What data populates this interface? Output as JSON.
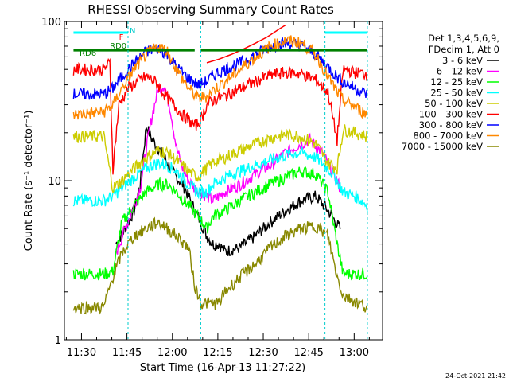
{
  "chart_data": {
    "type": "line",
    "title": "RHESSI Observing Summary Count Rates",
    "xlabel": "Start Time (16-Apr-13 11:27:22)",
    "ylabel": "Count Rate (s⁻¹ detector⁻¹)",
    "y_scale": "log",
    "ylim": [
      1,
      100
    ],
    "xlim_minutes": [
      -3,
      102
    ],
    "x_tick_labels": [
      "11:30",
      "11:45",
      "12:00",
      "12:15",
      "12:30",
      "12:45",
      "13:00"
    ],
    "y_tick_labels": [
      "1",
      "10",
      "100"
    ],
    "date_stamp": "24-Oct-2021 21:42",
    "legend_header": [
      "Det 1,3,4,5,6,9,",
      "FDecim 1, Att 0"
    ],
    "annotations": {
      "night_bar": "N",
      "flare_flag": "F",
      "rd0": "RD0",
      "rd6": "RD6"
    },
    "series": [
      {
        "name": "3 - 6 keV",
        "color": "#000000",
        "points": [
          [
            14,
            4.0
          ],
          [
            17,
            5.0
          ],
          [
            20,
            6.5
          ],
          [
            22,
            9.5
          ],
          [
            24,
            22
          ],
          [
            26,
            18
          ],
          [
            28,
            16
          ],
          [
            30,
            14
          ],
          [
            32,
            12
          ],
          [
            34,
            10.5
          ],
          [
            36,
            9.5
          ],
          [
            38,
            8
          ],
          [
            40,
            6.5
          ],
          [
            42,
            5.5
          ],
          [
            44,
            4.5
          ],
          [
            46,
            4.0
          ],
          [
            48,
            4.0
          ],
          [
            50,
            3.6
          ],
          [
            55,
            3.8
          ],
          [
            60,
            4.5
          ],
          [
            65,
            5.5
          ],
          [
            70,
            6.5
          ],
          [
            75,
            7.5
          ],
          [
            80,
            8.0
          ],
          [
            84,
            6.5
          ],
          [
            88,
            5.0
          ]
        ]
      },
      {
        "name": "6 - 12 keV",
        "color": "#ff00ff",
        "points": [
          [
            14,
            3.5
          ],
          [
            17,
            5.0
          ],
          [
            20,
            7.0
          ],
          [
            22,
            9.0
          ],
          [
            24,
            16
          ],
          [
            26,
            26
          ],
          [
            28,
            38
          ],
          [
            30,
            40
          ],
          [
            32,
            28
          ],
          [
            34,
            16
          ],
          [
            36,
            12
          ],
          [
            38,
            10
          ],
          [
            40,
            9
          ],
          [
            42,
            8.5
          ],
          [
            44,
            8
          ],
          [
            46,
            7.5
          ],
          [
            48,
            8
          ],
          [
            50,
            8.5
          ],
          [
            55,
            9.5
          ],
          [
            60,
            11
          ],
          [
            65,
            12.5
          ],
          [
            70,
            15
          ],
          [
            75,
            17
          ],
          [
            78,
            18
          ],
          [
            82,
            15
          ],
          [
            86,
            11
          ],
          [
            88,
            9
          ]
        ]
      },
      {
        "name": "12 - 25 keV",
        "color": "#00ff00",
        "points": [
          [
            0,
            2.6
          ],
          [
            10,
            2.6
          ],
          [
            13,
            2.7
          ],
          [
            16,
            5.5
          ],
          [
            20,
            7
          ],
          [
            24,
            8.5
          ],
          [
            28,
            9.5
          ],
          [
            31,
            9.5
          ],
          [
            34,
            8.5
          ],
          [
            38,
            7
          ],
          [
            41,
            6
          ],
          [
            44,
            5
          ],
          [
            46,
            6
          ],
          [
            50,
            6.5
          ],
          [
            55,
            7.5
          ],
          [
            60,
            8.5
          ],
          [
            65,
            9.5
          ],
          [
            70,
            10.5
          ],
          [
            75,
            11.5
          ],
          [
            80,
            11
          ],
          [
            84,
            8.5
          ],
          [
            87,
            4
          ],
          [
            89,
            2.6
          ],
          [
            97,
            2.6
          ]
        ]
      },
      {
        "name": "25 - 50 keV",
        "color": "#00ffff",
        "points": [
          [
            0,
            7.5
          ],
          [
            10,
            7.5
          ],
          [
            13,
            8
          ],
          [
            16,
            9
          ],
          [
            20,
            10.5
          ],
          [
            24,
            12
          ],
          [
            28,
            13
          ],
          [
            31,
            12.5
          ],
          [
            34,
            11.5
          ],
          [
            38,
            9.5
          ],
          [
            41,
            8.5
          ],
          [
            44,
            8.5
          ],
          [
            46,
            9.5
          ],
          [
            50,
            10.5
          ],
          [
            55,
            11.5
          ],
          [
            60,
            12.5
          ],
          [
            65,
            13.5
          ],
          [
            70,
            14.5
          ],
          [
            75,
            15
          ],
          [
            80,
            14
          ],
          [
            84,
            12
          ],
          [
            87,
            10
          ],
          [
            89,
            8.5
          ],
          [
            93,
            8
          ],
          [
            97,
            7
          ]
        ]
      },
      {
        "name": "50 - 100 keV",
        "color": "#cccc00",
        "points": [
          [
            0,
            19
          ],
          [
            10,
            19
          ],
          [
            13,
            9
          ],
          [
            16,
            10
          ],
          [
            20,
            12
          ],
          [
            24,
            14
          ],
          [
            28,
            15.5
          ],
          [
            31,
            15
          ],
          [
            34,
            13.5
          ],
          [
            38,
            11.5
          ],
          [
            41,
            10.5
          ],
          [
            44,
            12
          ],
          [
            46,
            13
          ],
          [
            50,
            14
          ],
          [
            55,
            15.5
          ],
          [
            60,
            17
          ],
          [
            65,
            18.5
          ],
          [
            70,
            19.5
          ],
          [
            75,
            19
          ],
          [
            80,
            17
          ],
          [
            84,
            13
          ],
          [
            87,
            12
          ],
          [
            89,
            21
          ],
          [
            93,
            20
          ],
          [
            97,
            19
          ]
        ]
      },
      {
        "name": "100 - 300 keV",
        "color": "#ff0000",
        "points": [
          [
            0,
            50
          ],
          [
            10,
            50
          ],
          [
            12,
            55
          ],
          [
            13,
            12
          ],
          [
            15,
            30
          ],
          [
            18,
            38
          ],
          [
            21,
            42
          ],
          [
            24,
            45
          ],
          [
            27,
            42
          ],
          [
            30,
            35
          ],
          [
            33,
            30
          ],
          [
            36,
            26
          ],
          [
            38,
            24
          ],
          [
            40,
            22
          ],
          [
            42,
            24
          ],
          [
            44,
            30
          ],
          [
            46,
            32
          ],
          [
            50,
            34
          ],
          [
            55,
            38
          ],
          [
            60,
            42
          ],
          [
            65,
            46
          ],
          [
            70,
            48
          ],
          [
            75,
            47
          ],
          [
            80,
            43
          ],
          [
            84,
            36
          ],
          [
            87,
            18
          ],
          [
            89,
            50
          ],
          [
            93,
            48
          ],
          [
            97,
            47
          ]
        ]
      },
      {
        "name": "300 - 800 keV",
        "color": "#0000ff",
        "points": [
          [
            0,
            35
          ],
          [
            10,
            35
          ],
          [
            13,
            38
          ],
          [
            16,
            45
          ],
          [
            20,
            55
          ],
          [
            24,
            65
          ],
          [
            28,
            68
          ],
          [
            31,
            62
          ],
          [
            34,
            52
          ],
          [
            38,
            44
          ],
          [
            41,
            40
          ],
          [
            44,
            42
          ],
          [
            46,
            46
          ],
          [
            50,
            50
          ],
          [
            55,
            55
          ],
          [
            60,
            62
          ],
          [
            65,
            70
          ],
          [
            70,
            73
          ],
          [
            75,
            71
          ],
          [
            80,
            62
          ],
          [
            84,
            52
          ],
          [
            87,
            45
          ],
          [
            89,
            42
          ],
          [
            93,
            38
          ],
          [
            97,
            35
          ]
        ]
      },
      {
        "name": "800 - 7000 keV",
        "color": "#ff8800",
        "points": [
          [
            0,
            26
          ],
          [
            10,
            27
          ],
          [
            13,
            30
          ],
          [
            16,
            38
          ],
          [
            20,
            50
          ],
          [
            24,
            62
          ],
          [
            28,
            70
          ],
          [
            31,
            65
          ],
          [
            34,
            50
          ],
          [
            38,
            38
          ],
          [
            41,
            33
          ],
          [
            44,
            34
          ],
          [
            46,
            37
          ],
          [
            50,
            42
          ],
          [
            55,
            50
          ],
          [
            60,
            60
          ],
          [
            65,
            70
          ],
          [
            70,
            76
          ],
          [
            75,
            74
          ],
          [
            80,
            62
          ],
          [
            84,
            45
          ],
          [
            87,
            36
          ],
          [
            89,
            32
          ],
          [
            93,
            29
          ],
          [
            97,
            26
          ]
        ]
      },
      {
        "name": "7000 - 15000 keV",
        "color": "#888800",
        "points": [
          [
            0,
            1.6
          ],
          [
            10,
            1.6
          ],
          [
            13,
            2.5
          ],
          [
            16,
            3.5
          ],
          [
            20,
            4.5
          ],
          [
            24,
            5.0
          ],
          [
            28,
            5.5
          ],
          [
            31,
            5.0
          ],
          [
            34,
            4.5
          ],
          [
            38,
            3.8
          ],
          [
            40,
            2.2
          ],
          [
            42,
            1.7
          ],
          [
            48,
            1.7
          ],
          [
            50,
            2.0
          ],
          [
            55,
            2.5
          ],
          [
            60,
            3.0
          ],
          [
            65,
            3.8
          ],
          [
            70,
            4.5
          ],
          [
            75,
            5.0
          ],
          [
            80,
            5.2
          ],
          [
            84,
            4.5
          ],
          [
            87,
            2.5
          ],
          [
            89,
            1.9
          ],
          [
            97,
            1.6
          ]
        ]
      }
    ],
    "special_traces": {
      "red_spike_series": {
        "name": "100 - 300 keV",
        "color": "#ff0000",
        "points": [
          [
            44,
            55
          ],
          [
            48,
            58
          ],
          [
            52,
            62
          ],
          [
            56,
            67
          ],
          [
            60,
            73
          ],
          [
            64,
            80
          ],
          [
            68,
            90
          ],
          [
            70,
            95
          ]
        ]
      },
      "cyan_attenuator_bar": {
        "color": "#00ffff",
        "segments": [
          [
            [
              0,
              100
            ],
            [
              18,
              100
            ]
          ],
          [
            [
              83,
              100
            ],
            [
              97,
              100
            ]
          ]
        ]
      },
      "green_rd6_bar": {
        "color": "#008000",
        "segments": [
          [
            [
              0,
              66
            ],
            [
              40,
              66
            ]
          ],
          [
            [
              42,
              66
            ],
            [
              97,
              66
            ]
          ]
        ]
      }
    }
  }
}
